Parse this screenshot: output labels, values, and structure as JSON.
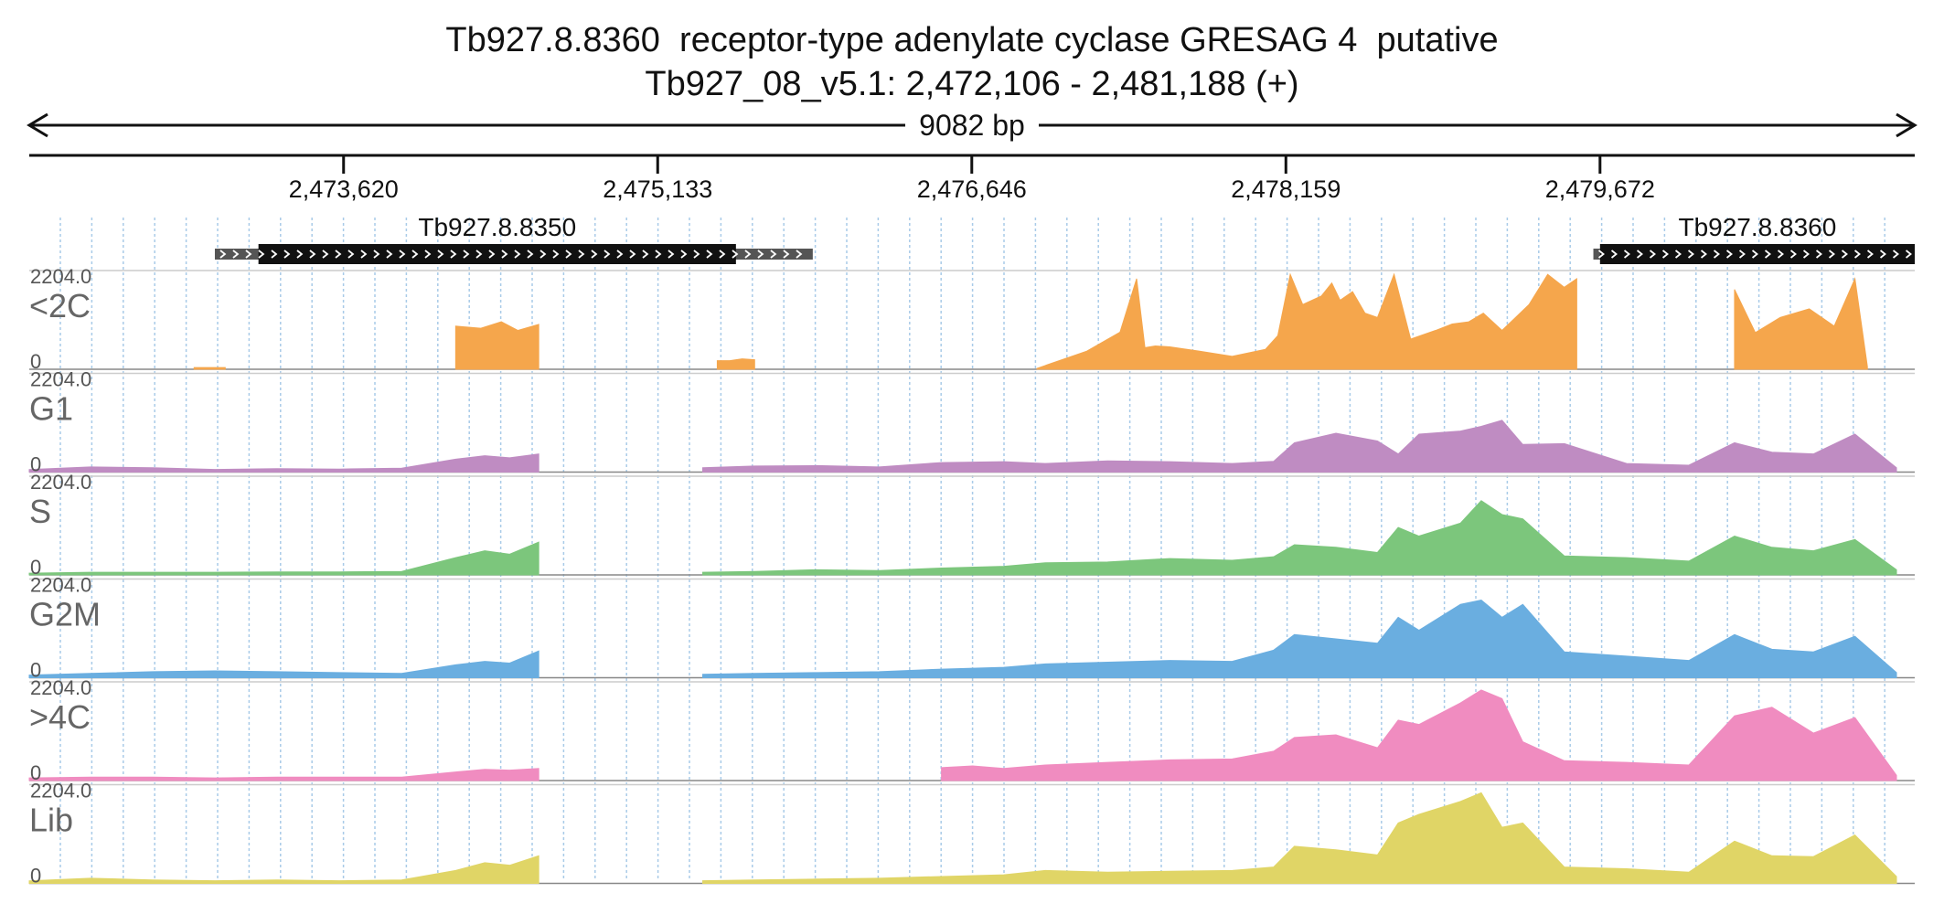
{
  "header": {
    "title": "Tb927.8.8360  receptor-type adenylate cyclase GRESAG 4  putative",
    "subtitle": "Tb927_08_v5.1: 2,472,106 - 2,481,188 (+)",
    "span_label": "9082 bp"
  },
  "chart_data": {
    "type": "area",
    "genomic_range": [
      2472106,
      2481188
    ],
    "xticks": [
      {
        "pos": 2473620,
        "label": "2,473,620"
      },
      {
        "pos": 2475133,
        "label": "2,475,133"
      },
      {
        "pos": 2476646,
        "label": "2,476,646"
      },
      {
        "pos": 2478159,
        "label": "2,478,159"
      },
      {
        "pos": 2479672,
        "label": "2,479,672"
      }
    ],
    "ylim": [
      0,
      2204.0
    ],
    "y_max_label": "2204.0",
    "y_min_label": "0",
    "genes": [
      {
        "name": "Tb927.8.8350",
        "start": 2473000,
        "end": 2475880,
        "cds_start": 2473210,
        "cds_end": 2475510
      },
      {
        "name": "Tb927.8.8360",
        "start": 2479640,
        "end": 2481188,
        "cds_start": 2479672,
        "cds_end": 2481188
      }
    ],
    "series": [
      {
        "name": "<2C",
        "color": "#f5a64c",
        "segments": [
          {
            "x": [
              2472900,
              2473050
            ],
            "y": [
              40,
              40
            ]
          },
          {
            "x": [
              2474160,
              2474280,
              2474380,
              2474460,
              2474560
            ],
            "y": [
              1000,
              950,
              1100,
              900,
              1040
            ]
          },
          {
            "x": [
              2475420,
              2475480,
              2475540,
              2475600
            ],
            "y": [
              200,
              200,
              240,
              220
            ]
          },
          {
            "x": [
              2476960,
              2477200,
              2477360,
              2477440,
              2477480,
              2477530,
              2477600,
              2477740,
              2477900,
              2478060,
              2478120,
              2478180,
              2478240,
              2478330,
              2478380,
              2478420,
              2478480,
              2478540,
              2478600,
              2478680,
              2478760,
              2478880,
              2478960,
              2479040,
              2479110,
              2479200,
              2479330,
              2479420,
              2479500,
              2479560
            ],
            "y": [
              20,
              420,
              860,
              2100,
              500,
              540,
              520,
              420,
              300,
              460,
              780,
              2200,
              1500,
              1700,
              2000,
              1600,
              1800,
              1300,
              1200,
              2200,
              700,
              900,
              1050,
              1100,
              1300,
              900,
              1500,
              2200,
              1900,
              2100
            ]
          },
          {
            "x": [
              2480320,
              2480420,
              2480540,
              2480680,
              2480800,
              2480900,
              2480960
            ],
            "y": [
              1850,
              850,
              1200,
              1400,
              1000,
              2100,
              60
            ]
          }
        ]
      },
      {
        "name": "G1",
        "color": "#bf8cc2",
        "segments": [
          {
            "x": [
              2472106,
              2472400,
              2472700,
              2473000,
              2473300,
              2473600,
              2473900,
              2474160,
              2474300,
              2474420,
              2474560
            ],
            "y": [
              60,
              120,
              100,
              60,
              80,
              70,
              90,
              300,
              380,
              330,
              420
            ]
          },
          {
            "x": [
              2475350,
              2475600,
              2475900,
              2476200,
              2476500,
              2476800,
              2477000,
              2477300,
              2477600,
              2477900,
              2478100,
              2478200,
              2478400,
              2478600,
              2478700,
              2478800,
              2479000,
              2479100,
              2479200,
              2479300,
              2479500,
              2479800,
              2480100,
              2480320,
              2480500,
              2480700,
              2480900,
              2481100
            ],
            "y": [
              100,
              140,
              150,
              120,
              220,
              240,
              200,
              260,
              240,
              200,
              250,
              680,
              900,
              720,
              420,
              880,
              950,
              1060,
              1200,
              640,
              660,
              200,
              160,
              680,
              460,
              420,
              880,
              100
            ]
          }
        ]
      },
      {
        "name": "S",
        "color": "#7cc67c",
        "segments": [
          {
            "x": [
              2472106,
              2472400,
              2472700,
              2473000,
              2473300,
              2473600,
              2473900,
              2474160,
              2474300,
              2474420,
              2474560
            ],
            "y": [
              40,
              60,
              60,
              60,
              70,
              70,
              80,
              400,
              560,
              480,
              760
            ]
          },
          {
            "x": [
              2475350,
              2475600,
              2475900,
              2476200,
              2476500,
              2476800,
              2477000,
              2477300,
              2477600,
              2477900,
              2478100,
              2478200,
              2478400,
              2478600,
              2478700,
              2478800,
              2479000,
              2479100,
              2479200,
              2479300,
              2479500,
              2479800,
              2480100,
              2480320,
              2480500,
              2480700,
              2480900,
              2481100
            ],
            "y": [
              60,
              80,
              120,
              100,
              160,
              200,
              280,
              300,
              380,
              340,
              420,
              700,
              640,
              520,
              1100,
              900,
              1200,
              1720,
              1400,
              1300,
              440,
              400,
              320,
              900,
              640,
              560,
              820,
              120
            ]
          }
        ]
      },
      {
        "name": "G2M",
        "color": "#6aaee0",
        "segments": [
          {
            "x": [
              2472106,
              2472400,
              2472700,
              2473000,
              2473300,
              2473600,
              2473900,
              2474160,
              2474300,
              2474420,
              2474560
            ],
            "y": [
              60,
              100,
              140,
              160,
              140,
              120,
              100,
              300,
              380,
              340,
              620
            ]
          },
          {
            "x": [
              2475350,
              2475600,
              2475900,
              2476200,
              2476500,
              2476800,
              2477000,
              2477300,
              2477600,
              2477900,
              2478100,
              2478200,
              2478400,
              2478600,
              2478700,
              2478800,
              2479000,
              2479100,
              2479200,
              2479300,
              2479500,
              2479800,
              2480100,
              2480320,
              2480500,
              2480700,
              2480900,
              2481100
            ],
            "y": [
              80,
              100,
              120,
              140,
              200,
              240,
              320,
              360,
              400,
              380,
              640,
              1000,
              900,
              800,
              1400,
              1100,
              1700,
              1800,
              1400,
              1700,
              600,
              500,
              400,
              1000,
              660,
              600,
              960,
              120
            ]
          }
        ]
      },
      {
        "name": ">4C",
        "color": "#f08cc0",
        "segments": [
          {
            "x": [
              2472106,
              2472400,
              2472700,
              2473000,
              2473300,
              2473600,
              2473900,
              2474160,
              2474300,
              2474420,
              2474560
            ],
            "y": [
              60,
              80,
              80,
              60,
              80,
              80,
              80,
              200,
              260,
              240,
              280
            ]
          },
          {
            "x": [
              2476500,
              2476650,
              2476800,
              2477000,
              2477300,
              2477600,
              2477900,
              2478100,
              2478200,
              2478400,
              2478600,
              2478700,
              2478800,
              2479000,
              2479100,
              2479200,
              2479300,
              2479500,
              2479800,
              2480100,
              2480320,
              2480500,
              2480700,
              2480900,
              2481100
            ],
            "y": [
              300,
              340,
              280,
              360,
              420,
              480,
              500,
              680,
              1000,
              1060,
              760,
              1400,
              1300,
              1800,
              2100,
              1900,
              900,
              460,
              420,
              360,
              1500,
              1700,
              1100,
              1460,
              120
            ]
          }
        ]
      },
      {
        "name": "Lib",
        "color": "#e0d566",
        "segments": [
          {
            "x": [
              2472106,
              2472400,
              2472700,
              2473000,
              2473300,
              2473600,
              2473900,
              2474160,
              2474300,
              2474420,
              2474560
            ],
            "y": [
              60,
              120,
              80,
              60,
              80,
              60,
              80,
              300,
              480,
              420,
              640
            ]
          },
          {
            "x": [
              2475350,
              2475600,
              2475900,
              2476200,
              2476500,
              2476800,
              2477000,
              2477300,
              2477600,
              2477900,
              2478100,
              2478200,
              2478400,
              2478600,
              2478700,
              2478800,
              2479000,
              2479100,
              2479200,
              2479300,
              2479500,
              2479800,
              2480100,
              2480320,
              2480500,
              2480700,
              2480900,
              2481100
            ],
            "y": [
              60,
              80,
              100,
              120,
              160,
              200,
              300,
              260,
              280,
              300,
              380,
              860,
              780,
              660,
              1400,
              1600,
              1900,
              2100,
              1300,
              1400,
              380,
              340,
              260,
              980,
              640,
              620,
              1120,
              160
            ]
          }
        ]
      }
    ]
  }
}
